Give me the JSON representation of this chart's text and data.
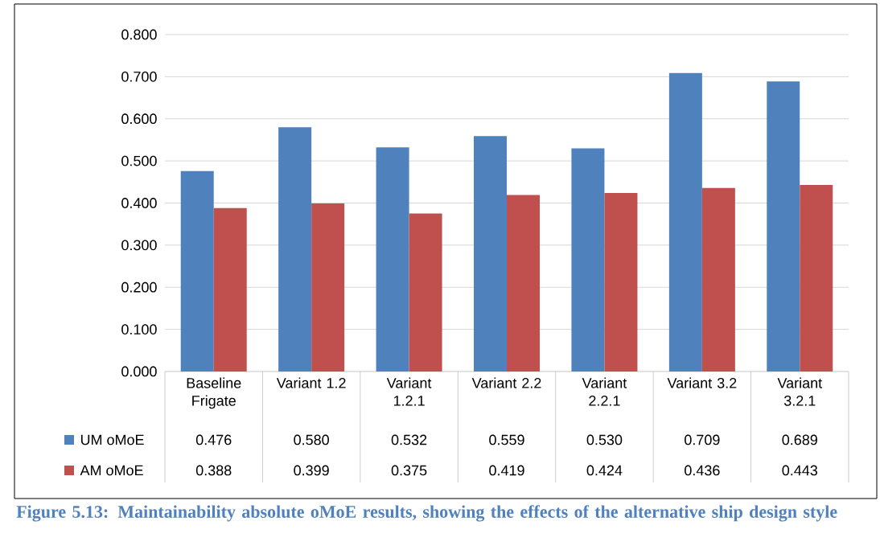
{
  "chart_data": {
    "type": "bar",
    "categories": [
      "Baseline Frigate",
      "Variant 1.2",
      "Variant 1.2.1",
      "Variant 2.2",
      "Variant 2.2.1",
      "Variant 3.2",
      "Variant 3.2.1"
    ],
    "series": [
      {
        "name": "UM oMoE",
        "color": "#4f81bd",
        "values": [
          0.476,
          0.58,
          0.532,
          0.559,
          0.53,
          0.709,
          0.689
        ],
        "value_labels": [
          "0.476",
          "0.580",
          "0.532",
          "0.559",
          "0.530",
          "0.709",
          "0.689"
        ]
      },
      {
        "name": "AM oMoE",
        "color": "#c0504d",
        "values": [
          0.388,
          0.399,
          0.375,
          0.419,
          0.424,
          0.436,
          0.443
        ],
        "value_labels": [
          "0.388",
          "0.399",
          "0.375",
          "0.419",
          "0.424",
          "0.436",
          "0.443"
        ]
      }
    ],
    "ylim": [
      0,
      0.8
    ],
    "yticks": [
      {
        "value": 0,
        "label": "0.000"
      },
      {
        "value": 0.1,
        "label": "0.100"
      },
      {
        "value": 0.2,
        "label": "0.200"
      },
      {
        "value": 0.3,
        "label": "0.300"
      },
      {
        "value": 0.4,
        "label": "0.400"
      },
      {
        "value": 0.5,
        "label": "0.500"
      },
      {
        "value": 0.6,
        "label": "0.600"
      },
      {
        "value": 0.7,
        "label": "0.700"
      },
      {
        "value": 0.8,
        "label": "0.800"
      }
    ],
    "grid": "y",
    "legend": "bottom",
    "annotations": [
      "Figure 5.13: Maintainability absolute oMoE results, showing the effects of the alternative ship design style"
    ]
  }
}
